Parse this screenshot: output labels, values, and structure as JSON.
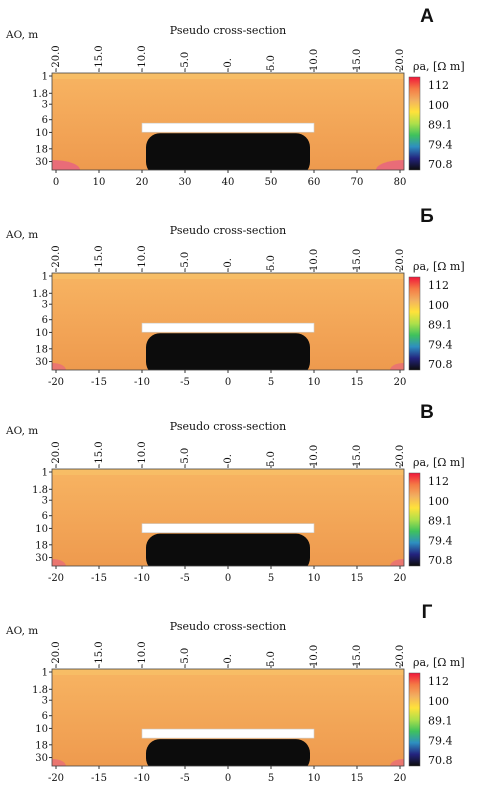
{
  "figure_title": "",
  "panels": [
    {
      "letter": "A",
      "bottom_ticks": [
        "0",
        "10",
        "20",
        "30",
        "40",
        "50",
        "60",
        "70",
        "80"
      ]
    },
    {
      "letter": "Б",
      "bottom_ticks": [
        "-20",
        "-15",
        "-10",
        "-5",
        "0",
        "5",
        "10",
        "15",
        "20"
      ]
    },
    {
      "letter": "В",
      "bottom_ticks": [
        "-20",
        "-15",
        "-10",
        "-5",
        "0",
        "5",
        "10",
        "15",
        "20"
      ]
    },
    {
      "letter": "Г",
      "bottom_ticks": [
        "-20",
        "-15",
        "-10",
        "-5",
        "0",
        "5",
        "10",
        "15",
        "20"
      ]
    }
  ],
  "common": {
    "title": "Pseudo cross-section",
    "y_label": "AO, m",
    "y_ticks": [
      "1",
      "1.8",
      "3",
      "6",
      "10",
      "18",
      "30"
    ],
    "top_ticks": [
      "-20.0",
      "-15.0",
      "-10.0",
      "-5.0",
      "-0.",
      "5.0",
      "10.0",
      "15.0",
      "20.0"
    ],
    "colorbar_label": "ρa, [Ω m]",
    "colorbar_ticks": [
      "112",
      "100",
      "89.1",
      "79.4",
      "70.8"
    ]
  },
  "chart_data": [
    {
      "type": "heatmap",
      "title": "Pseudo cross-section",
      "panel": "A",
      "xlabel": "",
      "ylabel": "AO, m",
      "x_bottom_range": [
        0,
        80
      ],
      "x_top_range": [
        -20,
        20
      ],
      "y_ticks": [
        1,
        1.8,
        3,
        6,
        10,
        18,
        30
      ],
      "y_scale": "log",
      "colorbar": {
        "label": "ρa, [Ω m]",
        "ticks": [
          112,
          100,
          89.1,
          79.4,
          70.8
        ]
      },
      "anomaly": {
        "x_from": 20,
        "x_to": 60,
        "ao_depth": 10,
        "min_rho": 70.8
      },
      "background_rho": 100
    },
    {
      "type": "heatmap",
      "title": "Pseudo cross-section",
      "panel": "Б",
      "xlabel": "",
      "ylabel": "AO, m",
      "x_bottom_range": [
        -20,
        20
      ],
      "x_top_range": [
        -20,
        20
      ],
      "y_ticks": [
        1,
        1.8,
        3,
        6,
        10,
        18,
        30
      ],
      "y_scale": "log",
      "colorbar": {
        "label": "ρa, [Ω m]",
        "ticks": [
          112,
          100,
          89.1,
          79.4,
          70.8
        ]
      },
      "anomaly": {
        "x_from": -10,
        "x_to": 10,
        "ao_depth": 10,
        "min_rho": 70.8
      },
      "background_rho": 100
    },
    {
      "type": "heatmap",
      "title": "Pseudo cross-section",
      "panel": "В",
      "xlabel": "",
      "ylabel": "AO, m",
      "x_bottom_range": [
        -20,
        20
      ],
      "x_top_range": [
        -20,
        20
      ],
      "y_ticks": [
        1,
        1.8,
        3,
        6,
        10,
        18,
        30
      ],
      "y_scale": "log",
      "colorbar": {
        "label": "ρa, [Ω m]",
        "ticks": [
          112,
          100,
          89.1,
          79.4,
          70.8
        ]
      },
      "anomaly": {
        "x_from": -10,
        "x_to": 10,
        "ao_depth": 12,
        "min_rho": 70.8
      },
      "background_rho": 100
    },
    {
      "type": "heatmap",
      "title": "Pseudo cross-section",
      "panel": "Г",
      "xlabel": "",
      "ylabel": "AO, m",
      "x_bottom_range": [
        -20,
        20
      ],
      "x_top_range": [
        -20,
        20
      ],
      "y_ticks": [
        1,
        1.8,
        3,
        6,
        10,
        18,
        30
      ],
      "y_scale": "log",
      "colorbar": {
        "label": "ρa, [Ω m]",
        "ticks": [
          112,
          100,
          89.1,
          79.4,
          70.8
        ]
      },
      "anomaly": {
        "x_from": -10,
        "x_to": 10,
        "ao_depth": 15,
        "min_rho": 70.8
      },
      "background_rho": 100
    }
  ],
  "colors": {
    "background_orange": "#f2a85a",
    "colorbar_stops": [
      "#f0163a",
      "#f57a45",
      "#f2b060",
      "#ffe23a",
      "#aee04a",
      "#3fc25c",
      "#2e8fc0",
      "#23237e",
      "#0c0c0c"
    ]
  }
}
